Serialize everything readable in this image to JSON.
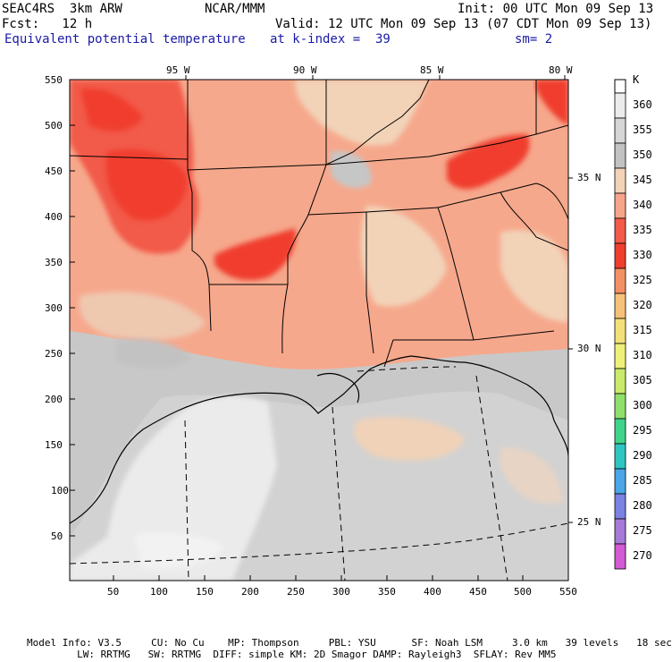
{
  "header": {
    "line1_left": "SEAC4RS  3km ARW",
    "line1_center": "NCAR/MMM",
    "line1_right": "Init: 00 UTC Mon 09 Sep 13",
    "line2_left": "Fcst:   12 h",
    "line2_right": "Valid: 12 UTC Mon 09 Sep 13 (07 CDT Mon 09 Sep 13)",
    "line3_left": "Equivalent potential temperature",
    "line3_center": "at k-index =  39",
    "line3_right": "sm= 2"
  },
  "axes": {
    "lon_labels": [
      "95 W",
      "90 W",
      "85 W",
      "80 W"
    ],
    "lat_labels": [
      "35 N",
      "30 N",
      "25 N"
    ],
    "x_ticks": [
      "50",
      "100",
      "150",
      "200",
      "250",
      "300",
      "350",
      "400",
      "450",
      "500",
      "550"
    ],
    "y_ticks": [
      "550",
      "500",
      "450",
      "400",
      "350",
      "300",
      "250",
      "200",
      "150",
      "100",
      "50"
    ]
  },
  "colorbar": {
    "unit": "K",
    "levels": [
      "360",
      "355",
      "350",
      "345",
      "340",
      "335",
      "330",
      "325",
      "320",
      "315",
      "310",
      "305",
      "300",
      "295",
      "290",
      "285",
      "280",
      "275",
      "270"
    ],
    "colors": [
      "#ececec",
      "#d6d6d6",
      "#c2c2c2",
      "#f2d3b8",
      "#f7a58a",
      "#f25a4a",
      "#f03e2e",
      "#f49066",
      "#f6c27a",
      "#f4e07a",
      "#eef07a",
      "#c9ea6a",
      "#8fe06a",
      "#3fd48a",
      "#2fc6c2",
      "#4aa6e6",
      "#7a82e2",
      "#a67ad6",
      "#d25ad2"
    ]
  },
  "footer": {
    "line1": "Model Info: V3.5     CU: No Cu    MP: Thompson     PBL: YSU      SF: Noah LSM     3.0 km   39 levels   18 sec",
    "line2": "             LW: RRTMG   SW: RRTMG  DIFF: simple KM: 2D Smagor DAMP: Rayleigh3  SFLAY: Rev MM5"
  }
}
